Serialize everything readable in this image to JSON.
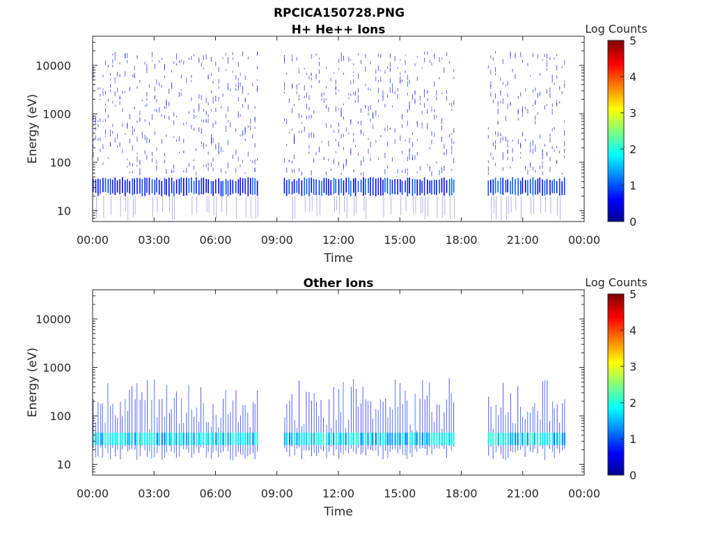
{
  "figure": {
    "title_line1": "RPCICA150728.PNG",
    "colormap": [
      "#00008f",
      "#0000ff",
      "#00ffff",
      "#ffff00",
      "#ff0000",
      "#800000"
    ]
  },
  "chart_data": [
    {
      "type": "heatmap",
      "title": "H+ He++ Ions",
      "xlabel": "Time",
      "ylabel": "Energy (eV)",
      "x_ticks": [
        "00:00",
        "03:00",
        "06:00",
        "09:00",
        "12:00",
        "15:00",
        "18:00",
        "21:00",
        "00:00"
      ],
      "xlim_hours": [
        0,
        24
      ],
      "y_scale": "log",
      "y_ticks": [
        10,
        100,
        1000,
        10000
      ],
      "y_tick_labels": [
        "10",
        "100",
        "1000",
        "10000"
      ],
      "ylim": [
        6,
        40000
      ],
      "colorbar": {
        "label": "Log Counts",
        "ticks": [
          "0",
          "1",
          "2",
          "3",
          "4",
          "5"
        ],
        "range": [
          0,
          5
        ]
      },
      "data_segments_hours": [
        [
          0.0,
          8.15
        ],
        [
          9.35,
          17.7
        ],
        [
          19.3,
          23.05
        ]
      ],
      "data_gaps_hours": [
        [
          8.15,
          9.35
        ],
        [
          17.7,
          19.3
        ]
      ],
      "main_band_eV": [
        22,
        45
      ],
      "main_band_log_counts": [
        0.3,
        1.2
      ],
      "sparse_energy_extent_eV": [
        8,
        20000
      ]
    },
    {
      "type": "heatmap",
      "title": "Other Ions",
      "xlabel": "Time",
      "ylabel": "Energy (eV)",
      "x_ticks": [
        "00:00",
        "03:00",
        "06:00",
        "09:00",
        "12:00",
        "15:00",
        "18:00",
        "21:00",
        "00:00"
      ],
      "xlim_hours": [
        0,
        24
      ],
      "y_scale": "log",
      "y_ticks": [
        10,
        100,
        1000,
        10000
      ],
      "y_tick_labels": [
        "10",
        "100",
        "1000",
        "10000"
      ],
      "ylim": [
        6,
        40000
      ],
      "colorbar": {
        "label": "Log Counts",
        "ticks": [
          "0",
          "1",
          "2",
          "3",
          "4",
          "5"
        ],
        "range": [
          0,
          5
        ]
      },
      "data_segments_hours": [
        [
          0.0,
          8.15
        ],
        [
          9.35,
          17.7
        ],
        [
          19.3,
          23.05
        ]
      ],
      "data_gaps_hours": [
        [
          8.15,
          9.35
        ],
        [
          17.7,
          19.3
        ]
      ],
      "main_band_eV": [
        25,
        45
      ],
      "main_band_log_counts": [
        1.2,
        2.2
      ],
      "spike_energy_extent_eV": [
        12,
        600
      ]
    }
  ]
}
